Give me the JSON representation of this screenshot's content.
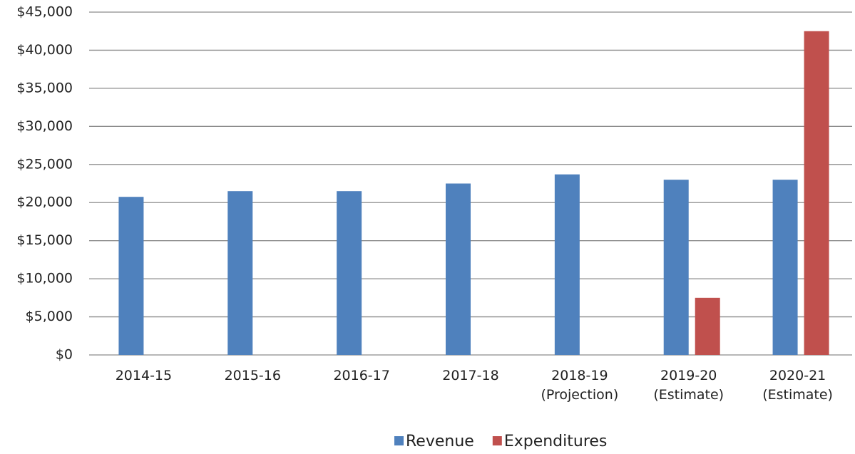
{
  "chart_data": {
    "type": "bar",
    "categories": [
      "2014-15",
      "2015-16",
      "2016-17",
      "2017-18",
      "2018-19\n(Projection)",
      "2019-20\n(Estimate)",
      "2020-21\n(Estimate)"
    ],
    "series": [
      {
        "name": "Revenue",
        "color": "#4f81bd",
        "values": [
          20750,
          21500,
          21500,
          22500,
          23700,
          23000,
          23000
        ]
      },
      {
        "name": "Expenditures",
        "color": "#c0504d",
        "values": [
          null,
          null,
          null,
          null,
          null,
          7500,
          42500
        ]
      }
    ],
    "ylim": [
      0,
      45000
    ],
    "yticks": [
      {
        "value": 0,
        "label": "$0"
      },
      {
        "value": 5000,
        "label": "$5,000"
      },
      {
        "value": 10000,
        "label": "$10,000"
      },
      {
        "value": 15000,
        "label": "$15,000"
      },
      {
        "value": 20000,
        "label": "$20,000"
      },
      {
        "value": 25000,
        "label": "$25,000"
      },
      {
        "value": 30000,
        "label": "$30,000"
      },
      {
        "value": 35000,
        "label": "$35,000"
      },
      {
        "value": 40000,
        "label": "$40,000"
      },
      {
        "value": 45000,
        "label": "$45,000"
      }
    ],
    "grid": true,
    "legend": "bottom"
  }
}
